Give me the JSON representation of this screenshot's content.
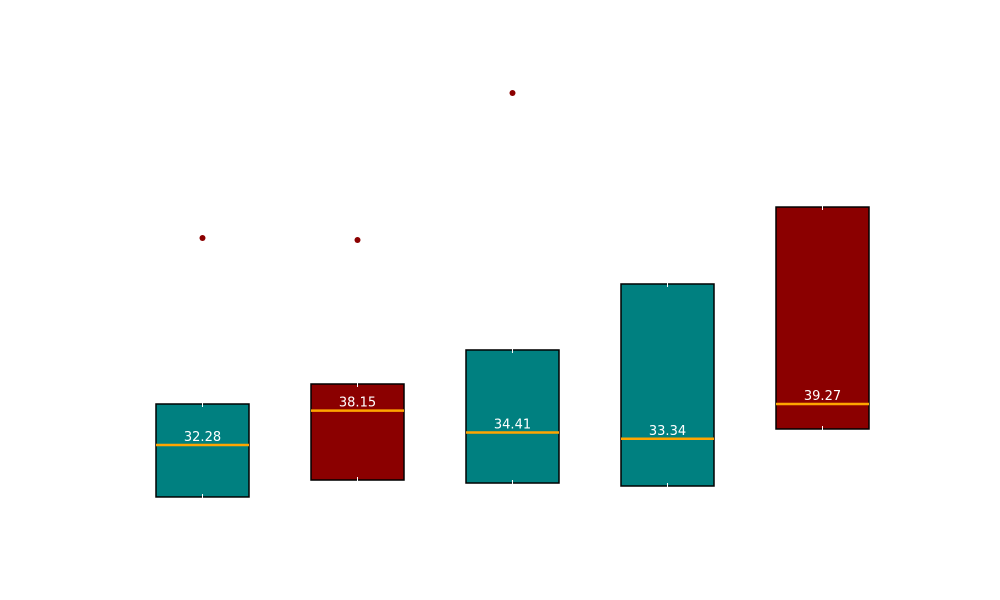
{
  "chart_data": {
    "type": "box",
    "ylim": [
      18.13,
      95.87
    ],
    "median_color": "#ffa500",
    "flier_color": "#8b0000",
    "boxes": [
      {
        "whislo": 23.42,
        "q1": 23.42,
        "median": 32.28,
        "q3": 39.27,
        "whishi": 39.27,
        "fliers": [
          67.57
        ],
        "color": "#008080"
      },
      {
        "whislo": 26.31,
        "q1": 26.31,
        "median": 38.15,
        "q3": 42.68,
        "whishi": 42.68,
        "fliers": [
          67.23
        ],
        "color": "#8b0000"
      },
      {
        "whislo": 25.8,
        "q1": 25.8,
        "median": 34.41,
        "q3": 48.48,
        "whishi": 48.48,
        "fliers": [
          92.29
        ],
        "color": "#008080"
      },
      {
        "whislo": 25.29,
        "q1": 25.29,
        "median": 33.34,
        "q3": 59.73,
        "whishi": 59.73,
        "fliers": [],
        "color": "#008080"
      },
      {
        "whislo": 35.01,
        "q1": 35.01,
        "median": 39.27,
        "q3": 72.85,
        "whishi": 72.85,
        "fliers": [],
        "color": "#8b0000"
      }
    ]
  }
}
